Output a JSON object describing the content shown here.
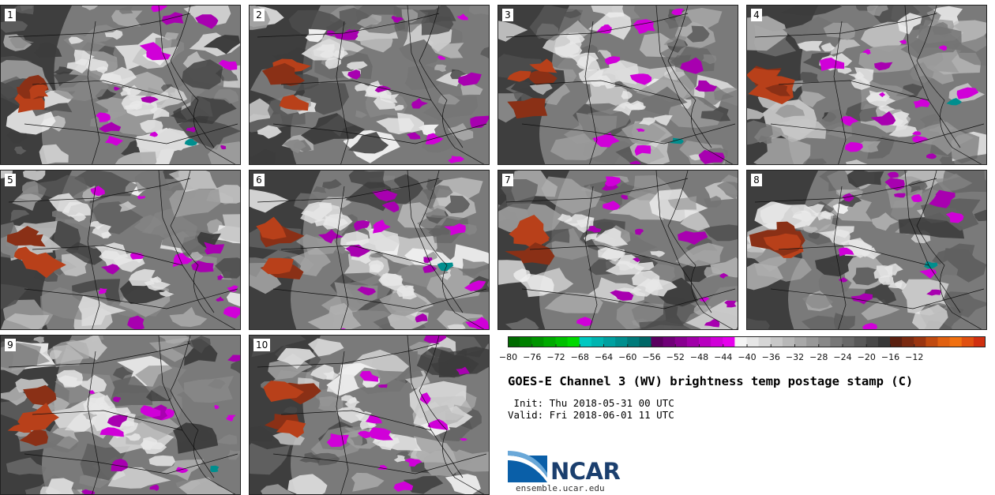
{
  "title": "GOES-E Channel 3 (WV) brightness temp postage stamp (C)",
  "init_line": " Init: Thu 2018-05-31 00 UTC",
  "valid_line": "Valid: Fri 2018-06-01 11 UTC",
  "logo": {
    "text": "NCAR"
  },
  "site": "ensemble.ucar.edu",
  "panels": [
    "1",
    "2",
    "3",
    "4",
    "5",
    "6",
    "7",
    "8",
    "9",
    "10"
  ],
  "colorbar": {
    "ticks": [
      "−80",
      "−76",
      "−72",
      "−68",
      "−64",
      "−60",
      "−56",
      "−52",
      "−48",
      "−44",
      "−40",
      "−36",
      "−32",
      "−28",
      "−24",
      "−20",
      "−16",
      "−12"
    ],
    "colors": [
      "#006a00",
      "#008000",
      "#009400",
      "#00aa00",
      "#00c000",
      "#00d800",
      "#00c8c0",
      "#00b4b0",
      "#00a0a0",
      "#008e8e",
      "#007a7a",
      "#006666",
      "#5a0060",
      "#700078",
      "#880090",
      "#a000a8",
      "#b800c0",
      "#d000d8",
      "#e600ec",
      "#f4f4f4",
      "#e6e6e6",
      "#d6d6d6",
      "#c8c8c8",
      "#b8b8b8",
      "#a8a8a8",
      "#989898",
      "#888888",
      "#787878",
      "#686868",
      "#585858",
      "#484848",
      "#383838",
      "#5a2010",
      "#7a2a10",
      "#9a3510",
      "#c04a10",
      "#e06010",
      "#f07010",
      "#e05010",
      "#d03010"
    ]
  }
}
